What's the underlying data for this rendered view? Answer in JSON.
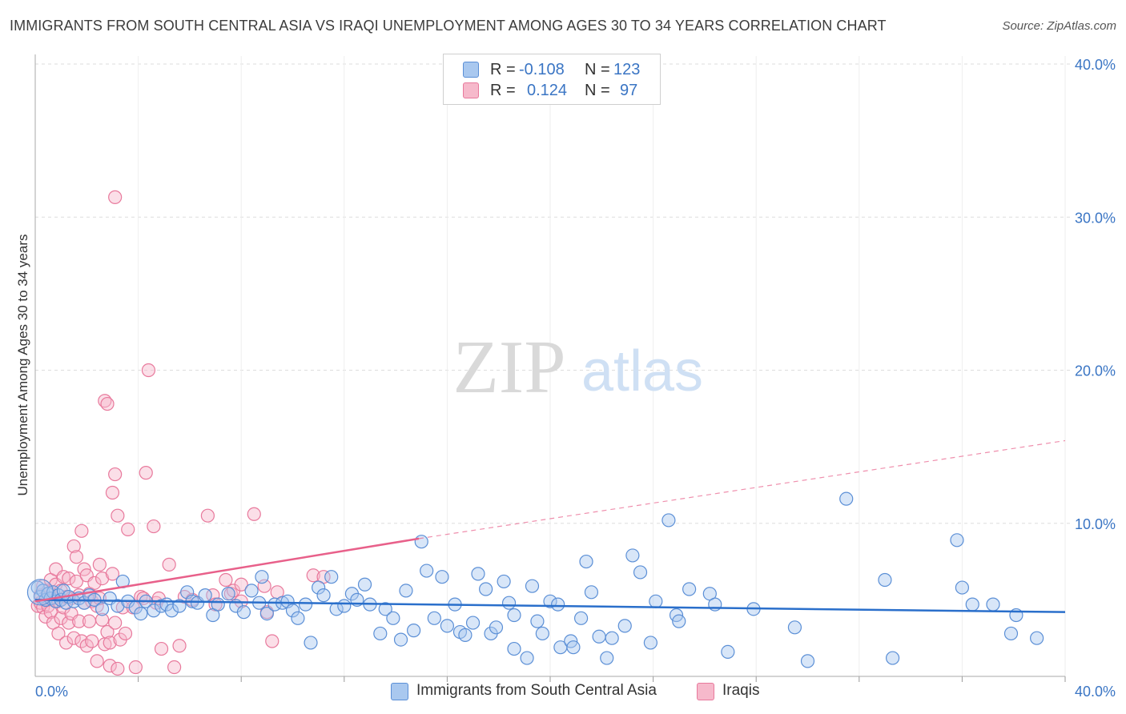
{
  "title": "IMMIGRANTS FROM SOUTH CENTRAL ASIA VS IRAQI UNEMPLOYMENT AMONG AGES 30 TO 34 YEARS CORRELATION CHART",
  "source": "Source: ZipAtlas.com",
  "watermark": {
    "zip": "ZIP",
    "atlas": "atlas"
  },
  "colors": {
    "blue_fill": "#a9c8ef",
    "blue_stroke": "#5b8fd6",
    "blue_line": "#2a6fcb",
    "pink_fill": "#f6b9cb",
    "pink_stroke": "#e8799c",
    "pink_line": "#e8608a",
    "grid": "#dddddd",
    "tick_text": "#3a75c4"
  },
  "legend": {
    "rows": [
      {
        "r_label": "R =",
        "r_value": "-0.108",
        "n_label": "N =",
        "n_value": "123",
        "color": "#a9c8ef",
        "border": "#5b8fd6"
      },
      {
        "r_label": "R =",
        "r_value": "0.124",
        "n_label": "N =",
        "n_value": "97",
        "color": "#f6b9cb",
        "border": "#e8799c"
      }
    ]
  },
  "bottom_legend": [
    {
      "label": "Immigrants from South Central Asia",
      "color": "#a9c8ef",
      "border": "#5b8fd6"
    },
    {
      "label": "Iraqis",
      "color": "#f6b9cb",
      "border": "#e8799c"
    }
  ],
  "chart_data": {
    "type": "scatter",
    "title": "IMMIGRANTS FROM SOUTH CENTRAL ASIA VS IRAQI UNEMPLOYMENT AMONG AGES 30 TO 34 YEARS CORRELATION CHART",
    "xlabel": "",
    "ylabel": "Unemployment Among Ages 30 to 34 years",
    "xlim": [
      0,
      40
    ],
    "ylim": [
      0,
      40
    ],
    "x_tick_labels": [
      "0.0%",
      "40.0%"
    ],
    "y_tick_values": [
      10,
      20,
      30,
      40
    ],
    "y_tick_labels": [
      "10.0%",
      "20.0%",
      "30.0%",
      "40.0%"
    ],
    "grid": true,
    "legend_position": "top-center",
    "series": [
      {
        "name": "Immigrants from South Central Asia",
        "R": -0.108,
        "N": 123,
        "trend": {
          "x": [
            0,
            40
          ],
          "y": [
            5.0,
            4.2
          ]
        },
        "points": [
          [
            0.1,
            5.8
          ],
          [
            0.2,
            5.2
          ],
          [
            0.3,
            5.6
          ],
          [
            0.4,
            5.0
          ],
          [
            0.5,
            5.4
          ],
          [
            0.6,
            5.1
          ],
          [
            0.7,
            5.5
          ],
          [
            0.8,
            4.9
          ],
          [
            0.9,
            5.3
          ],
          [
            1.0,
            5.0
          ],
          [
            1.1,
            5.6
          ],
          [
            1.2,
            4.8
          ],
          [
            1.3,
            5.2
          ],
          [
            1.5,
            4.9
          ],
          [
            1.7,
            5.1
          ],
          [
            1.9,
            4.8
          ],
          [
            2.1,
            5.3
          ],
          [
            2.3,
            5.0
          ],
          [
            2.6,
            4.4
          ],
          [
            2.9,
            5.1
          ],
          [
            3.2,
            4.6
          ],
          [
            3.4,
            6.2
          ],
          [
            3.6,
            4.9
          ],
          [
            3.9,
            4.5
          ],
          [
            4.1,
            4.1
          ],
          [
            4.3,
            4.9
          ],
          [
            4.6,
            4.3
          ],
          [
            4.9,
            4.6
          ],
          [
            5.1,
            4.7
          ],
          [
            5.3,
            4.3
          ],
          [
            5.6,
            4.6
          ],
          [
            5.9,
            5.5
          ],
          [
            6.1,
            4.9
          ],
          [
            6.3,
            4.8
          ],
          [
            6.6,
            5.3
          ],
          [
            6.9,
            4.0
          ],
          [
            7.1,
            4.7
          ],
          [
            7.5,
            5.4
          ],
          [
            7.8,
            4.6
          ],
          [
            8.1,
            4.2
          ],
          [
            8.4,
            5.6
          ],
          [
            8.7,
            4.8
          ],
          [
            8.8,
            6.5
          ],
          [
            9.0,
            4.1
          ],
          [
            9.3,
            4.7
          ],
          [
            9.6,
            4.8
          ],
          [
            9.8,
            4.9
          ],
          [
            10.0,
            4.3
          ],
          [
            10.2,
            3.8
          ],
          [
            10.5,
            4.7
          ],
          [
            10.7,
            2.2
          ],
          [
            11.0,
            5.8
          ],
          [
            11.2,
            5.3
          ],
          [
            11.5,
            6.5
          ],
          [
            11.7,
            4.4
          ],
          [
            12.0,
            4.6
          ],
          [
            12.3,
            5.4
          ],
          [
            12.5,
            5.0
          ],
          [
            12.8,
            6.0
          ],
          [
            13.0,
            4.7
          ],
          [
            13.4,
            2.8
          ],
          [
            13.6,
            4.4
          ],
          [
            13.9,
            3.8
          ],
          [
            14.2,
            2.4
          ],
          [
            14.4,
            5.6
          ],
          [
            14.7,
            3.0
          ],
          [
            15.0,
            8.8
          ],
          [
            15.2,
            6.9
          ],
          [
            15.5,
            3.8
          ],
          [
            15.8,
            6.5
          ],
          [
            16.0,
            3.3
          ],
          [
            16.3,
            4.7
          ],
          [
            16.5,
            2.9
          ],
          [
            16.7,
            2.7
          ],
          [
            17.0,
            3.5
          ],
          [
            17.2,
            6.7
          ],
          [
            17.5,
            5.7
          ],
          [
            17.7,
            2.8
          ],
          [
            17.9,
            3.2
          ],
          [
            18.2,
            6.2
          ],
          [
            18.4,
            4.8
          ],
          [
            18.6,
            4.0
          ],
          [
            18.6,
            1.8
          ],
          [
            19.1,
            1.2
          ],
          [
            19.3,
            5.9
          ],
          [
            19.5,
            3.6
          ],
          [
            19.7,
            2.8
          ],
          [
            20.0,
            4.9
          ],
          [
            20.3,
            4.7
          ],
          [
            20.4,
            1.9
          ],
          [
            20.8,
            2.3
          ],
          [
            20.9,
            1.9
          ],
          [
            21.2,
            3.8
          ],
          [
            21.4,
            7.5
          ],
          [
            21.6,
            5.5
          ],
          [
            21.9,
            2.6
          ],
          [
            22.2,
            1.2
          ],
          [
            22.4,
            2.5
          ],
          [
            22.9,
            3.3
          ],
          [
            23.2,
            7.9
          ],
          [
            23.5,
            6.8
          ],
          [
            23.9,
            2.2
          ],
          [
            24.1,
            4.9
          ],
          [
            24.6,
            10.2
          ],
          [
            24.9,
            4.0
          ],
          [
            25.0,
            3.6
          ],
          [
            25.4,
            5.7
          ],
          [
            26.2,
            5.4
          ],
          [
            26.4,
            4.7
          ],
          [
            26.9,
            1.6
          ],
          [
            27.9,
            4.4
          ],
          [
            29.5,
            3.2
          ],
          [
            30.0,
            1.0
          ],
          [
            31.5,
            11.6
          ],
          [
            33.0,
            6.3
          ],
          [
            33.3,
            1.2
          ],
          [
            35.8,
            8.9
          ],
          [
            36.0,
            5.8
          ],
          [
            36.4,
            4.7
          ],
          [
            37.2,
            4.7
          ],
          [
            37.9,
            2.8
          ],
          [
            38.1,
            4.0
          ],
          [
            38.9,
            2.5
          ]
        ]
      },
      {
        "name": "Iraqis",
        "R": 0.124,
        "N": 97,
        "trend": {
          "x": [
            0,
            14.9
          ],
          "y": [
            4.9,
            9.0
          ]
        },
        "trend_extension": {
          "x": [
            14.9,
            40
          ],
          "y": [
            9.0,
            15.4
          ]
        },
        "points": [
          [
            0.1,
            4.6
          ],
          [
            0.2,
            5.3
          ],
          [
            0.2,
            4.8
          ],
          [
            0.3,
            5.9
          ],
          [
            0.3,
            4.5
          ],
          [
            0.4,
            5.0
          ],
          [
            0.4,
            3.9
          ],
          [
            0.5,
            5.6
          ],
          [
            0.5,
            4.6
          ],
          [
            0.6,
            6.3
          ],
          [
            0.6,
            4.2
          ],
          [
            0.7,
            5.1
          ],
          [
            0.7,
            3.5
          ],
          [
            0.8,
            6.0
          ],
          [
            0.8,
            7.0
          ],
          [
            0.9,
            4.9
          ],
          [
            0.9,
            2.8
          ],
          [
            1.0,
            5.6
          ],
          [
            1.0,
            3.8
          ],
          [
            1.1,
            6.5
          ],
          [
            1.1,
            4.5
          ],
          [
            1.2,
            5.2
          ],
          [
            1.2,
            2.2
          ],
          [
            1.3,
            3.5
          ],
          [
            1.3,
            6.4
          ],
          [
            1.4,
            5.1
          ],
          [
            1.4,
            4.1
          ],
          [
            1.5,
            8.5
          ],
          [
            1.5,
            2.5
          ],
          [
            1.6,
            7.8
          ],
          [
            1.6,
            6.2
          ],
          [
            1.7,
            5.3
          ],
          [
            1.7,
            3.6
          ],
          [
            1.8,
            9.5
          ],
          [
            1.8,
            2.3
          ],
          [
            1.9,
            7.0
          ],
          [
            1.9,
            4.8
          ],
          [
            2.0,
            6.6
          ],
          [
            2.0,
            2.0
          ],
          [
            2.1,
            5.4
          ],
          [
            2.1,
            3.6
          ],
          [
            2.2,
            4.9
          ],
          [
            2.2,
            2.3
          ],
          [
            2.3,
            6.1
          ],
          [
            2.4,
            4.6
          ],
          [
            2.4,
            1.0
          ],
          [
            2.5,
            7.3
          ],
          [
            2.5,
            5.1
          ],
          [
            2.6,
            6.4
          ],
          [
            2.6,
            3.7
          ],
          [
            2.7,
            2.1
          ],
          [
            2.7,
            18.0
          ],
          [
            2.8,
            17.8
          ],
          [
            2.8,
            2.9
          ],
          [
            2.9,
            2.2
          ],
          [
            2.9,
            0.7
          ],
          [
            3.0,
            6.7
          ],
          [
            3.0,
            12.0
          ],
          [
            3.1,
            13.2
          ],
          [
            3.1,
            3.5
          ],
          [
            3.2,
            10.5
          ],
          [
            3.2,
            0.5
          ],
          [
            3.3,
            2.4
          ],
          [
            3.4,
            4.5
          ],
          [
            3.5,
            2.8
          ],
          [
            3.6,
            9.6
          ],
          [
            3.8,
            4.5
          ],
          [
            3.9,
            0.6
          ],
          [
            4.1,
            5.2
          ],
          [
            4.2,
            5.1
          ],
          [
            4.3,
            13.3
          ],
          [
            4.4,
            20.0
          ],
          [
            4.6,
            9.8
          ],
          [
            4.7,
            4.8
          ],
          [
            4.8,
            5.1
          ],
          [
            4.9,
            1.8
          ],
          [
            5.2,
            7.3
          ],
          [
            5.4,
            0.6
          ],
          [
            5.6,
            2.0
          ],
          [
            5.8,
            5.2
          ],
          [
            6.1,
            5.0
          ],
          [
            6.7,
            10.5
          ],
          [
            6.9,
            5.3
          ],
          [
            7.0,
            4.7
          ],
          [
            7.4,
            6.3
          ],
          [
            7.6,
            5.4
          ],
          [
            7.7,
            5.6
          ],
          [
            8.0,
            6.0
          ],
          [
            8.0,
            4.9
          ],
          [
            8.5,
            10.6
          ],
          [
            8.9,
            5.9
          ],
          [
            9.0,
            4.2
          ],
          [
            9.2,
            2.3
          ],
          [
            9.4,
            5.5
          ],
          [
            10.8,
            6.6
          ],
          [
            11.2,
            6.5
          ],
          [
            3.1,
            31.3
          ]
        ]
      }
    ]
  }
}
